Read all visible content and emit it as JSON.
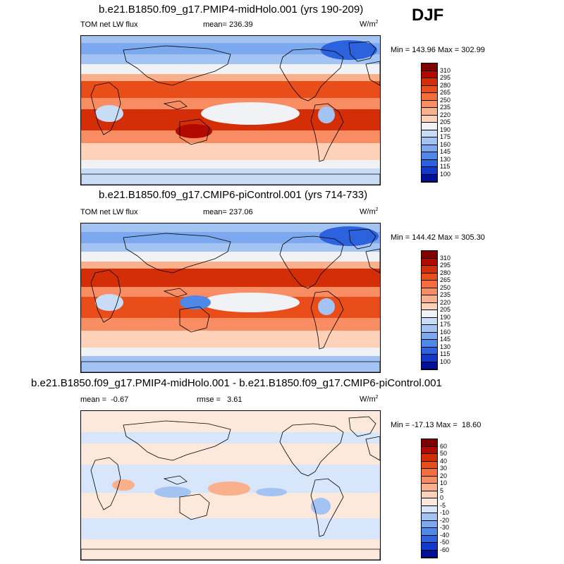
{
  "season": "DJF",
  "panels": [
    {
      "title": "b.e21.B1850.f09_g17.PMIP4-midHolo.001 (yrs 190-209)",
      "left_label": "TOM net LW flux",
      "mid_label": "mean= 236.39",
      "units_base": "W/m",
      "units_exp": "2",
      "minmax": "Min = 143.96 Max = 302.99",
      "levels": [
        "310",
        "295",
        "280",
        "265",
        "250",
        "235",
        "220",
        "205",
        "190",
        "175",
        "160",
        "145",
        "130",
        "115",
        "100"
      ],
      "colors": [
        "#7f0000",
        "#b20a00",
        "#d42e08",
        "#e84d1a",
        "#f56d3c",
        "#f88c62",
        "#fab08b",
        "#fdd2b8",
        "#f1f2f5",
        "#c9dcf6",
        "#a3c4f3",
        "#7ba8ee",
        "#5088e8",
        "#2c62de",
        "#1238cc",
        "#00109a"
      ]
    },
    {
      "title": "b.e21.B1850.f09_g17.CMIP6-piControl.001 (yrs 714-733)",
      "left_label": "TOM net LW flux",
      "mid_label": "mean= 237.06",
      "units_base": "W/m",
      "units_exp": "2",
      "minmax": "Min = 144.42 Max = 305.30",
      "levels": [
        "310",
        "295",
        "280",
        "265",
        "250",
        "235",
        "220",
        "205",
        "190",
        "175",
        "160",
        "145",
        "130",
        "115",
        "100"
      ],
      "colors": [
        "#7f0000",
        "#b20a00",
        "#d42e08",
        "#e84d1a",
        "#f56d3c",
        "#f88c62",
        "#fab08b",
        "#fdd2b8",
        "#f1f2f5",
        "#c9dcf6",
        "#a3c4f3",
        "#7ba8ee",
        "#5088e8",
        "#2c62de",
        "#1238cc",
        "#00109a"
      ]
    },
    {
      "title": "b.e21.B1850.f09_g17.PMIP4-midHolo.001 - b.e21.B1850.f09_g17.CMIP6-piControl.001",
      "left_label": "mean =  -0.67",
      "mid_label": "rmse =   3.61",
      "units_base": "W/m",
      "units_exp": "2",
      "minmax": "Min = -17.13 Max =  18.60",
      "levels": [
        "60",
        "50",
        "40",
        "30",
        "20",
        "10",
        "5",
        "0",
        "-5",
        "-10",
        "-20",
        "-30",
        "-40",
        "-50",
        "-60"
      ],
      "colors": [
        "#7f0000",
        "#b20a00",
        "#d42e08",
        "#e84d1a",
        "#f56d3c",
        "#f88c62",
        "#fab08b",
        "#fdd2b8",
        "#fde8dc",
        "#d7e6fb",
        "#a3c4f3",
        "#7ba8ee",
        "#5088e8",
        "#2c62de",
        "#1238cc",
        "#00109a"
      ]
    }
  ]
}
